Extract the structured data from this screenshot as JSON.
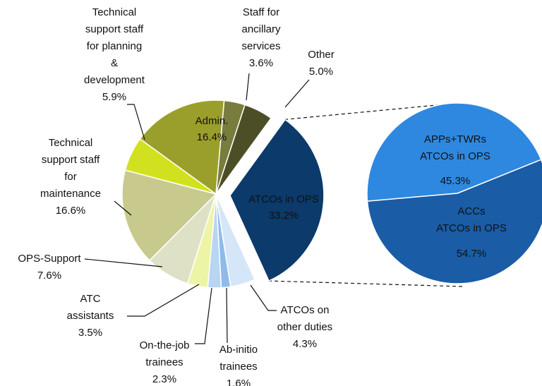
{
  "chart_data": [
    {
      "type": "pie",
      "categories": [
        "ATCOs in OPS",
        "ATCOs on other duties",
        "Ab-initio trainees",
        "On-the-job trainees",
        "ATC assistants",
        "OPS-Support",
        "Technical support staff for maintenance",
        "Technical support staff for planning & development",
        "Admin.",
        "Staff for ancillary services",
        "Other"
      ],
      "values": [
        33.2,
        4.3,
        1.6,
        2.3,
        3.5,
        7.6,
        16.6,
        5.9,
        16.4,
        3.6,
        5.0
      ],
      "value_labels": [
        "33.2%",
        "4.3%",
        "1.6%",
        "2.3%",
        "3.5%",
        "7.6%",
        "16.6%",
        "5.9%",
        "16.4%",
        "3.6%",
        "5.0%"
      ],
      "colors": [
        "#0b3a6b",
        "#d5e6f8",
        "#8fbbe8",
        "#b8d5f2",
        "#eef4a6",
        "#dfe1c6",
        "#c7ca8c",
        "#d2e11f",
        "#9a9f2b",
        "#787c3c",
        "#4c4f26"
      ]
    },
    {
      "type": "pie",
      "categories": [
        "APPs+TWRs ATCOs in OPS",
        "ACCs ATCOs in OPS"
      ],
      "values": [
        45.3,
        54.7
      ],
      "value_labels": [
        "45.3%",
        "54.7%"
      ],
      "colors": [
        "#2e88e0",
        "#1a5ca6"
      ]
    }
  ]
}
